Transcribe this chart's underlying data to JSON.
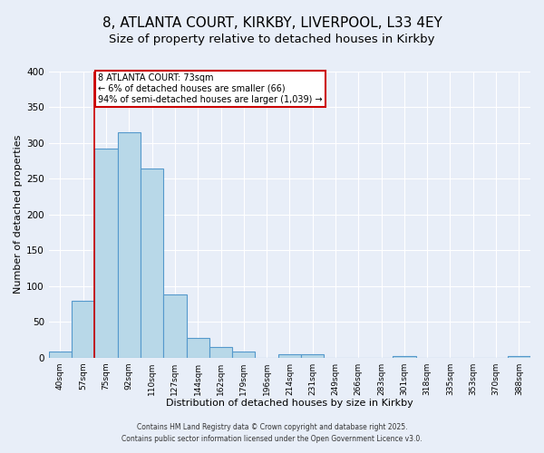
{
  "title": "8, ATLANTA COURT, KIRKBY, LIVERPOOL, L33 4EY",
  "subtitle": "Size of property relative to detached houses in Kirkby",
  "xlabel": "Distribution of detached houses by size in Kirkby",
  "ylabel": "Number of detached properties",
  "bin_labels": [
    "40sqm",
    "57sqm",
    "75sqm",
    "92sqm",
    "110sqm",
    "127sqm",
    "144sqm",
    "162sqm",
    "179sqm",
    "196sqm",
    "214sqm",
    "231sqm",
    "249sqm",
    "266sqm",
    "283sqm",
    "301sqm",
    "318sqm",
    "335sqm",
    "353sqm",
    "370sqm",
    "388sqm"
  ],
  "bar_heights": [
    8,
    79,
    292,
    315,
    265,
    88,
    27,
    15,
    8,
    0,
    5,
    5,
    0,
    0,
    0,
    2,
    0,
    0,
    0,
    0,
    2
  ],
  "bar_color": "#b8d8e8",
  "bar_edge_color": "#5599cc",
  "vline_color": "#cc0000",
  "annotation_title": "8 ATLANTA COURT: 73sqm",
  "annotation_line1": "← 6% of detached houses are smaller (66)",
  "annotation_line2": "94% of semi-detached houses are larger (1,039) →",
  "annotation_box_color": "#cc0000",
  "ylim": [
    0,
    400
  ],
  "yticks": [
    0,
    50,
    100,
    150,
    200,
    250,
    300,
    350,
    400
  ],
  "footnote1": "Contains HM Land Registry data © Crown copyright and database right 2025.",
  "footnote2": "Contains public sector information licensed under the Open Government Licence v3.0.",
  "bg_color": "#e8eef8",
  "title_fontsize": 11,
  "subtitle_fontsize": 9.5
}
